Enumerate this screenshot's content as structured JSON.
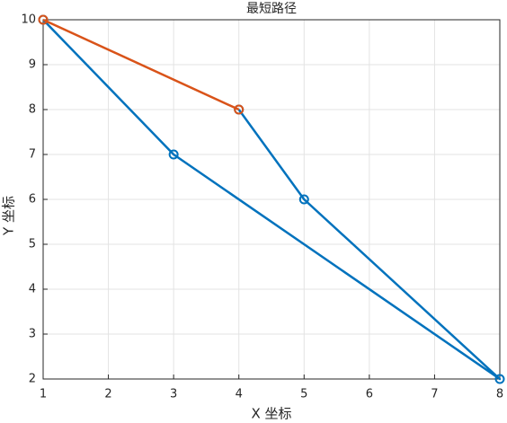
{
  "chart_data": {
    "type": "line",
    "title": "最短路径",
    "xlabel": "X 坐标",
    "ylabel": "Y 坐标",
    "xlim": [
      1,
      8
    ],
    "ylim": [
      2,
      10
    ],
    "xticks": [
      1,
      2,
      3,
      4,
      5,
      6,
      7,
      8
    ],
    "yticks": [
      2,
      3,
      4,
      5,
      6,
      7,
      8,
      9,
      10
    ],
    "grid": true,
    "marker": "o",
    "series": [
      {
        "color": "#0072BD",
        "x": [
          1,
          3,
          8,
          5,
          4
        ],
        "values": [
          10,
          7,
          2,
          6,
          8
        ]
      },
      {
        "color": "#D95319",
        "x": [
          4,
          1
        ],
        "values": [
          8,
          10
        ]
      }
    ]
  }
}
